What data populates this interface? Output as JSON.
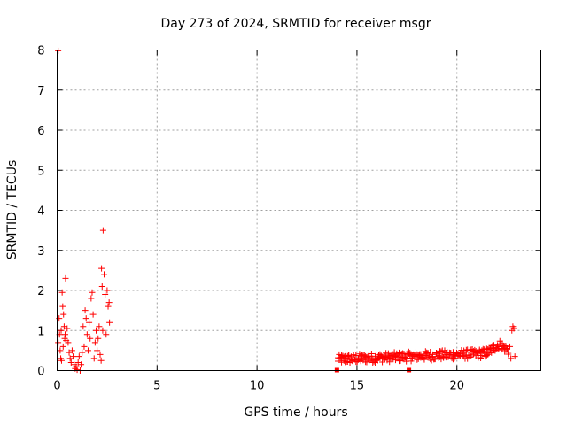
{
  "chart_data": {
    "type": "scatter",
    "title": "Day 273 of 2024, SRMTID for receiver msgr",
    "xlabel": "GPS time / hours",
    "ylabel": "SRMTID / TECUs",
    "xlim": [
      0,
      24.2
    ],
    "ylim": [
      0,
      8
    ],
    "x_ticks": [
      0,
      5,
      10,
      15,
      20
    ],
    "y_ticks": [
      0,
      1,
      2,
      3,
      4,
      5,
      6,
      7,
      8
    ],
    "grid": true,
    "marker": "plus",
    "color": "#ff0000",
    "series": [
      {
        "name": "SRMTID",
        "points": [
          [
            0.05,
            7.98
          ],
          [
            0.05,
            0.7
          ],
          [
            0.1,
            1.3
          ],
          [
            0.12,
            0.9
          ],
          [
            0.15,
            0.5
          ],
          [
            0.18,
            0.3
          ],
          [
            0.2,
            1.0
          ],
          [
            0.22,
            0.25
          ],
          [
            0.25,
            1.95
          ],
          [
            0.28,
            1.6
          ],
          [
            0.3,
            0.6
          ],
          [
            0.32,
            1.4
          ],
          [
            0.35,
            1.1
          ],
          [
            0.38,
            0.8
          ],
          [
            0.4,
            0.9
          ],
          [
            0.42,
            2.3
          ],
          [
            0.45,
            0.75
          ],
          [
            0.5,
            1.05
          ],
          [
            0.55,
            0.7
          ],
          [
            0.6,
            0.45
          ],
          [
            0.65,
            0.3
          ],
          [
            0.7,
            0.2
          ],
          [
            0.75,
            0.5
          ],
          [
            0.8,
            0.35
          ],
          [
            0.85,
            0.15
          ],
          [
            0.9,
            0.05
          ],
          [
            0.95,
            0.1
          ],
          [
            1.0,
            0.02
          ],
          [
            1.05,
            0.2
          ],
          [
            1.1,
            0.35
          ],
          [
            1.15,
            0.0
          ],
          [
            1.2,
            0.15
          ],
          [
            1.25,
            0.45
          ],
          [
            1.3,
            1.1
          ],
          [
            1.35,
            0.6
          ],
          [
            1.4,
            1.5
          ],
          [
            1.45,
            1.3
          ],
          [
            1.5,
            0.9
          ],
          [
            1.55,
            0.5
          ],
          [
            1.6,
            1.2
          ],
          [
            1.65,
            0.8
          ],
          [
            1.7,
            1.8
          ],
          [
            1.75,
            1.95
          ],
          [
            1.8,
            1.4
          ],
          [
            1.85,
            0.3
          ],
          [
            1.9,
            0.7
          ],
          [
            1.95,
            1.0
          ],
          [
            2.0,
            0.5
          ],
          [
            2.05,
            0.8
          ],
          [
            2.1,
            1.1
          ],
          [
            2.15,
            0.4
          ],
          [
            2.2,
            0.25
          ],
          [
            2.22,
            2.55
          ],
          [
            2.25,
            2.1
          ],
          [
            2.28,
            1.0
          ],
          [
            2.3,
            3.5
          ],
          [
            2.35,
            2.4
          ],
          [
            2.4,
            1.9
          ],
          [
            2.45,
            0.9
          ],
          [
            2.5,
            2.0
          ],
          [
            2.55,
            1.6
          ],
          [
            2.6,
            1.7
          ],
          [
            2.62,
            1.2
          ]
        ]
      }
    ],
    "band": {
      "x_start": 14.05,
      "x_end": 22.6,
      "y_base_start": 0.28,
      "y_base_end": 0.45,
      "peak_center": 22.1,
      "peak_height": 0.2,
      "jitter": 0.12
    },
    "tail_points": [
      [
        22.7,
        0.3
      ],
      [
        22.75,
        1.0
      ],
      [
        22.8,
        1.1
      ],
      [
        22.85,
        1.05
      ],
      [
        22.9,
        0.35
      ],
      [
        22.65,
        0.6
      ]
    ],
    "outliers_low": [
      [
        14.0,
        0.0
      ],
      [
        17.6,
        0.0
      ]
    ]
  }
}
